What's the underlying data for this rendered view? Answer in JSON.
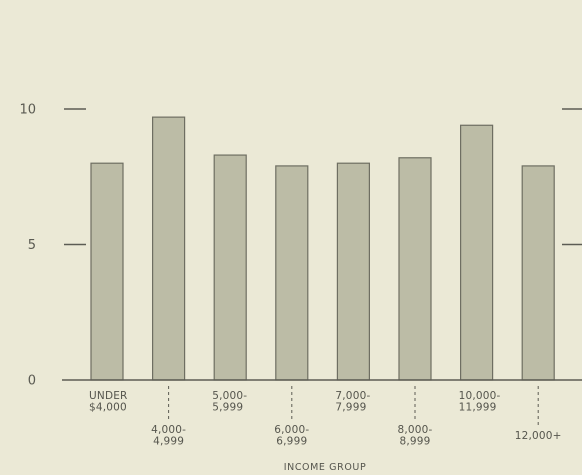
{
  "chart_data": {
    "type": "bar",
    "xlabel": "INCOME GROUP",
    "ylabel": "",
    "ylim": [
      0,
      10
    ],
    "y_ticks": [
      "0",
      "5",
      "10"
    ],
    "grid": false,
    "categories": [
      [
        "UNDER",
        "$4,000"
      ],
      [
        "4,000-",
        "4,999"
      ],
      [
        "5,000-",
        "5,999"
      ],
      [
        "6,000-",
        "6,999"
      ],
      [
        "7,000-",
        "7,999"
      ],
      [
        "8,000-",
        "8,999"
      ],
      [
        "10,000-",
        "11,999"
      ],
      [
        "12,000+"
      ]
    ],
    "values": [
      8.0,
      9.7,
      8.3,
      7.9,
      8.0,
      8.2,
      9.4,
      7.9
    ],
    "colors": {
      "bar_fill": "#bcbca6",
      "bar_stroke": "#6e6e62",
      "axis": "#5c5c54",
      "background": "#ebe9d6"
    }
  }
}
